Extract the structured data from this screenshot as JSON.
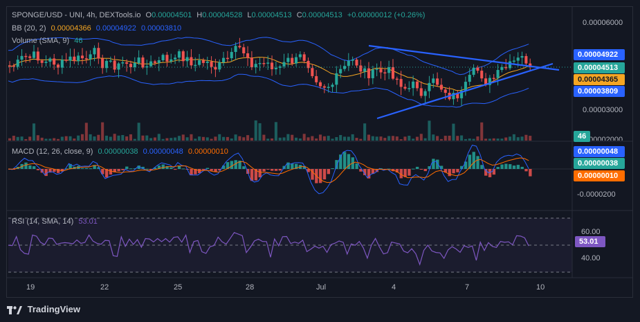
{
  "header": {
    "symbol": "SPONGE/USD - UNI, 4h, DEXTools.io",
    "o_label": "O",
    "o_value": "0.00004501",
    "h_label": "H",
    "h_value": "0.00004528",
    "l_label": "L",
    "l_value": "0.00004513",
    "c_label": "C",
    "c_value": "0.00004513",
    "change": "+0.00000012 (+0.26%)"
  },
  "bb_legend": {
    "label": "BB (20, 2)",
    "basis": "0.00004366",
    "upper": "0.00004922",
    "lower": "0.00003810"
  },
  "volume_legend": {
    "label": "Volume (SMA, 9)",
    "value": "46"
  },
  "price_axis": {
    "ticks": [
      "0.00006000",
      "0.00003000",
      "0.00002000"
    ],
    "badges": [
      {
        "value": "0.00004922",
        "color": "#2962ff"
      },
      {
        "value": "0.00004513",
        "color": "#26a69a"
      },
      {
        "value": "0.00004365",
        "color": "#f5a623"
      },
      {
        "value": "0.00003809",
        "color": "#2962ff"
      }
    ],
    "volume_badge": "46"
  },
  "macd_legend": {
    "label": "MACD (12, 26, close, 9)",
    "hist": "0.00000038",
    "macd": "0.00000048",
    "signal": "0.00000010"
  },
  "macd_axis": {
    "badges": [
      {
        "value": "0.00000048",
        "color": "#2962ff"
      },
      {
        "value": "0.00000038",
        "color": "#26a69a"
      },
      {
        "value": "0.00000010",
        "color": "#ff6d00"
      }
    ],
    "tick": "-0.0000200"
  },
  "rsi_legend": {
    "label": "RSI (14, SMA, 14)",
    "value": "53.01"
  },
  "rsi_axis": {
    "ticks": [
      "60.00",
      "40.00"
    ],
    "badge": "53.01"
  },
  "x_axis": {
    "labels": [
      "19",
      "22",
      "25",
      "28",
      "Jul",
      "4",
      "7",
      "10"
    ]
  },
  "branding": {
    "name": "TradingView"
  },
  "colors": {
    "up": "#26a69a",
    "down": "#ef5350",
    "bb_band": "#2962ff",
    "bb_basis": "#f5a623",
    "macd": "#2962ff",
    "signal": "#ff6d00",
    "rsi": "#7e57c2"
  },
  "chart_data": [
    {
      "type": "candlestick",
      "title": "SPONGE/USD - UNI, 4h, DEXTools.io",
      "x_labels": [
        "19",
        "22",
        "25",
        "28",
        "Jul",
        "4",
        "7",
        "10"
      ],
      "ylim": [
        2e-05,
        6e-05
      ],
      "y_ticks": [
        6e-05,
        3e-05,
        2e-05
      ],
      "last": {
        "open": 4.501e-05,
        "high": 4.528e-05,
        "low": 4.513e-05,
        "close": 4.513e-05
      },
      "bollinger": {
        "basis": 4.366e-05,
        "upper": 4.922e-05,
        "lower": 3.81e-05
      },
      "volume_sma": 46,
      "annotations": [
        "descending trendline",
        "ascending trendline"
      ]
    },
    {
      "type": "macd",
      "params": "12, 26, close, 9",
      "last": {
        "histogram": 3.8e-07,
        "macd": 4.8e-07,
        "signal": 1e-07
      },
      "y_ticks": [
        -2e-05
      ]
    },
    {
      "type": "line",
      "name": "RSI (14, SMA, 14)",
      "last": 53.01,
      "y_ticks": [
        60,
        40
      ],
      "ylim": [
        20,
        80
      ]
    }
  ]
}
